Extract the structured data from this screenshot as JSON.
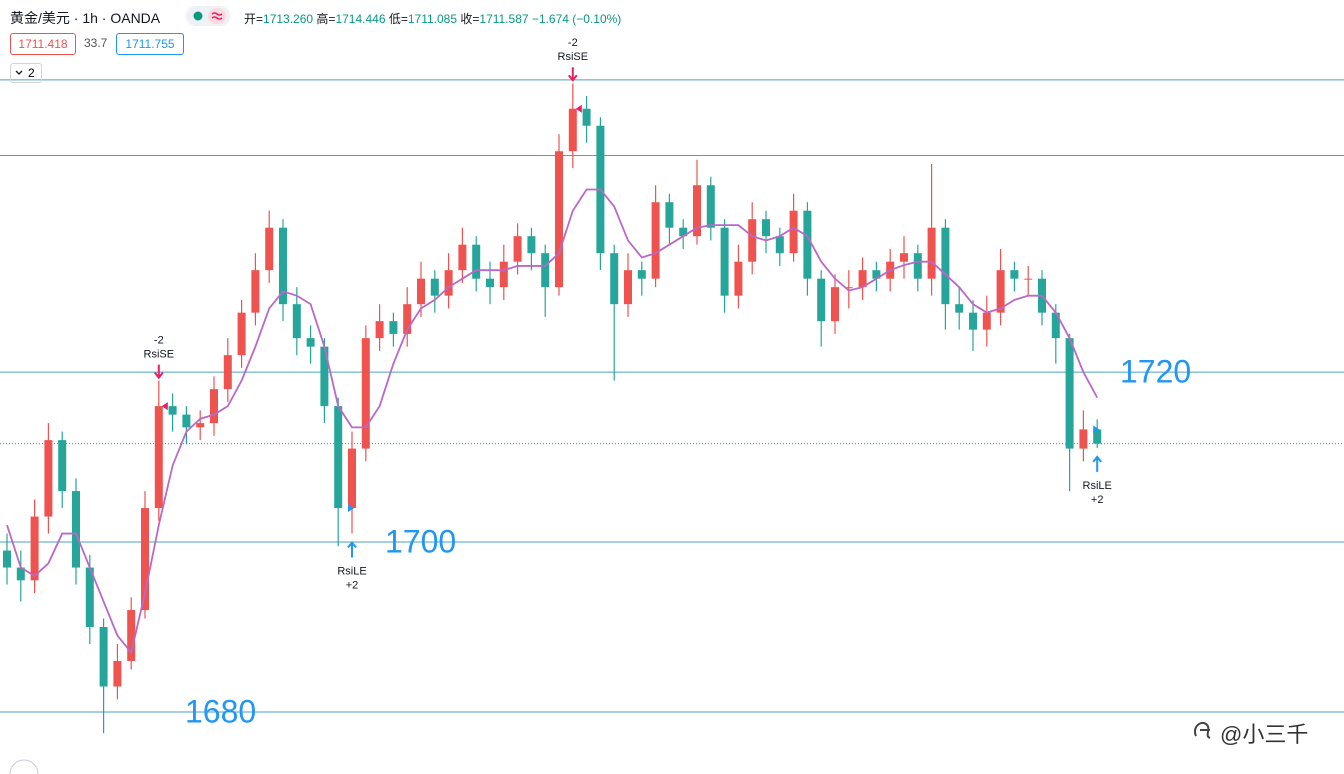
{
  "header": {
    "instrument": "黄金/美元 · 1h · OANDA",
    "ohlc": [
      {
        "label": "开=",
        "value": "1713.260"
      },
      {
        "label": "高=",
        "value": "1714.446"
      },
      {
        "label": "低=",
        "value": "1711.085"
      },
      {
        "label": "收=",
        "value": "1711.587"
      }
    ],
    "change": "−1.674 (−0.10%)",
    "bid": "1711.418",
    "spread": "33.7",
    "ask": "1711.755",
    "indicators_count": "2"
  },
  "chart_data": {
    "type": "candlestick",
    "ylim": [
      1672.7,
      1763.8
    ],
    "up_color": "#ef5350",
    "down_color": "#26a69a",
    "ma_color": "#ba68c8",
    "level_color": "#2196f3",
    "open": [
      1699,
      1697,
      1695.5,
      1703,
      1712,
      1706,
      1697,
      1690,
      1683,
      1686,
      1692,
      1704,
      1716,
      1715,
      1713.5,
      1714,
      1718,
      1722,
      1727,
      1732,
      1737,
      1728,
      1724,
      1723,
      1716,
      1704,
      1711,
      1724,
      1726,
      1724.5,
      1728,
      1731,
      1729,
      1732,
      1735,
      1731,
      1730,
      1733,
      1736,
      1734,
      1730,
      1746,
      1751,
      1749,
      1734,
      1728,
      1732,
      1731,
      1740,
      1737,
      1736,
      1742,
      1737,
      1729,
      1733,
      1738,
      1736,
      1734,
      1739,
      1731,
      1726,
      1730,
      1730,
      1732,
      1731,
      1733,
      1734,
      1731,
      1737,
      1728,
      1727,
      1725,
      1727,
      1732,
      1731,
      1731,
      1727,
      1724,
      1711,
      1713.26
    ],
    "high": [
      1701,
      1699,
      1705,
      1714,
      1713,
      1707.5,
      1698.5,
      1691,
      1688,
      1693.5,
      1706,
      1719,
      1717.5,
      1716,
      1715.5,
      1719.5,
      1724,
      1728.5,
      1734,
      1739,
      1738,
      1730,
      1725.5,
      1724,
      1717,
      1713,
      1725.5,
      1728,
      1727,
      1730,
      1733,
      1732,
      1734,
      1737,
      1736,
      1733,
      1735,
      1737.5,
      1737,
      1735,
      1748,
      1754,
      1752.5,
      1750,
      1735,
      1734,
      1733,
      1742,
      1741,
      1738,
      1745,
      1743,
      1738,
      1735,
      1740,
      1739,
      1737,
      1741,
      1740,
      1732,
      1731.5,
      1732,
      1733.5,
      1733,
      1734.5,
      1736,
      1735,
      1744.5,
      1738,
      1730,
      1728.5,
      1729,
      1734.5,
      1733,
      1732.5,
      1732,
      1728,
      1724.5,
      1715.5,
      1714.446
    ],
    "low": [
      1695,
      1693,
      1694,
      1701,
      1704,
      1695,
      1688,
      1677.5,
      1681.5,
      1685,
      1691,
      1702.5,
      1713,
      1711.5,
      1712,
      1712.5,
      1716.5,
      1720.5,
      1725.5,
      1730.5,
      1726,
      1722,
      1721,
      1714,
      1699.5,
      1701,
      1709.5,
      1722.5,
      1723,
      1723,
      1726.5,
      1727,
      1727.5,
      1730.5,
      1729.5,
      1728,
      1728.5,
      1731.5,
      1732,
      1726.5,
      1729,
      1744,
      1747,
      1732,
      1719,
      1726.5,
      1729,
      1730,
      1735,
      1734.5,
      1735,
      1735.5,
      1727,
      1727.5,
      1731.5,
      1734,
      1732.5,
      1733,
      1729,
      1723,
      1724.5,
      1727.5,
      1728.5,
      1729.5,
      1729.5,
      1731,
      1729.5,
      1729,
      1725,
      1725,
      1722.5,
      1723,
      1725.5,
      1729.5,
      1729,
      1725.5,
      1721,
      1706,
      1709.5,
      1711.085
    ],
    "close": [
      1697,
      1695.5,
      1703,
      1712,
      1706,
      1697,
      1690,
      1683,
      1686,
      1692,
      1704,
      1716,
      1715,
      1713.5,
      1714,
      1718,
      1722,
      1727,
      1732,
      1737,
      1728,
      1724,
      1723,
      1716,
      1704,
      1711,
      1724,
      1726,
      1724.5,
      1728,
      1731,
      1729,
      1732,
      1735,
      1731,
      1730,
      1733,
      1736,
      1734,
      1730,
      1746,
      1751,
      1749,
      1734,
      1728,
      1732,
      1731,
      1740,
      1737,
      1736,
      1742,
      1737,
      1729,
      1733,
      1738,
      1736,
      1734,
      1739,
      1731,
      1726,
      1730,
      1730,
      1732,
      1731,
      1733,
      1734,
      1731,
      1737,
      1728,
      1727,
      1725,
      1727,
      1732,
      1731,
      1731,
      1727,
      1724,
      1711,
      1713.26,
      1711.587
    ],
    "ma": [
      1702,
      1697,
      1696,
      1697.5,
      1701,
      1701,
      1697,
      1693,
      1689,
      1687,
      1694,
      1702,
      1709,
      1713,
      1714.5,
      1715,
      1716,
      1719,
      1723,
      1727.5,
      1729.5,
      1729,
      1728,
      1723,
      1716,
      1713.5,
      1713.5,
      1716,
      1721,
      1725,
      1727.5,
      1728.5,
      1730,
      1731,
      1732,
      1732,
      1732,
      1732.5,
      1732.5,
      1732.5,
      1734,
      1739,
      1741.5,
      1741.5,
      1739.5,
      1735.5,
      1733.5,
      1734,
      1735,
      1736,
      1737,
      1737.3,
      1737.3,
      1737.3,
      1736,
      1735.5,
      1736,
      1737,
      1736,
      1733,
      1731,
      1729.6,
      1730,
      1731,
      1732,
      1732.6,
      1733,
      1733,
      1731.5,
      1730,
      1728,
      1727,
      1727.5,
      1728.5,
      1729,
      1729,
      1727,
      1724,
      1720,
      1717
    ],
    "drawn_levels": [
      1754.4,
      1745.5
    ],
    "levels": [
      1720,
      1700,
      1680
    ],
    "signals": [
      {
        "index": 11,
        "direction": "down",
        "qty": "-2",
        "label": "RsiSE"
      },
      {
        "index": 41,
        "direction": "down",
        "qty": "-2",
        "label": "RsiSE"
      },
      {
        "index": 25,
        "direction": "up",
        "label": "RsiLE",
        "qty": "+2"
      },
      {
        "index": 79,
        "direction": "up",
        "label": "RsiLE",
        "qty": "+2"
      }
    ]
  },
  "watermark": "@小三千"
}
